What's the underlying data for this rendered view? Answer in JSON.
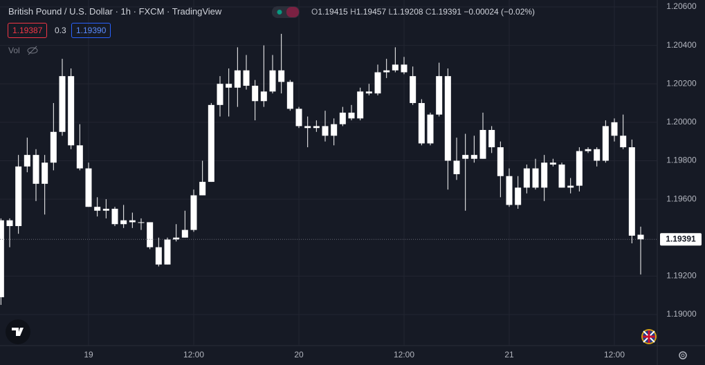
{
  "chart_data": {
    "type": "candlestick",
    "title": "British Pound / U.S. Dollar · 1h · FXCM · TradingView",
    "ohlc_labels": [
      "O",
      "H",
      "L",
      "C"
    ],
    "change": "−0.00024 (−0.02%)",
    "bid": "1.19387",
    "spread": "0.3",
    "ask": "1.19390",
    "volume_label": "Vol",
    "color": "#ffffff",
    "categories": [
      null,
      null,
      null,
      null,
      null,
      null,
      null,
      null,
      null,
      null,
      "19",
      null,
      null,
      null,
      null,
      null,
      null,
      null,
      null,
      null,
      null,
      null,
      "12:00",
      null,
      null,
      null,
      null,
      null,
      null,
      null,
      null,
      null,
      null,
      null,
      "20",
      null,
      null,
      null,
      null,
      null,
      null,
      null,
      null,
      null,
      null,
      null,
      "12:00",
      null,
      null,
      null,
      null,
      null,
      null,
      null,
      null,
      null,
      null,
      null,
      "21",
      null,
      null,
      null,
      null,
      null,
      null,
      null,
      null,
      null,
      null,
      null,
      "12:00",
      null,
      null,
      null
    ],
    "open": [
      1.1909,
      1.1949,
      1.1946,
      1.1977,
      1.1983,
      1.1968,
      1.1979,
      1.1995,
      1.2024,
      1.1988,
      1.1976,
      1.1956,
      1.1954,
      1.1955,
      1.1947,
      1.1949,
      1.1948,
      1.1948,
      1.1935,
      1.1926,
      1.1939,
      1.194,
      1.1944,
      1.1962,
      1.1969,
      1.2009,
      1.202,
      1.2018,
      1.2027,
      1.2019,
      1.2011,
      1.2016,
      1.2027,
      1.2021,
      1.2007,
      1.1998,
      1.1997,
      1.1998,
      1.1993,
      1.1999,
      1.2005,
      1.2002,
      1.2016,
      1.2015,
      1.2026,
      1.2027,
      1.203,
      1.2024,
      1.201,
      1.1989,
      1.2004,
      1.2024,
      1.198,
      1.1981,
      1.1983,
      1.1981,
      1.1996,
      1.1987,
      1.1972,
      1.1957,
      1.1966,
      1.1976,
      1.1966,
      1.1979,
      1.1978,
      1.1966,
      1.1967,
      1.1985,
      1.1986,
      1.198,
      1.2,
      1.1993,
      1.1987,
      1.19415
    ],
    "high": [
      1.195,
      1.195,
      1.1983,
      1.1992,
      1.1986,
      1.1983,
      1.201,
      1.2033,
      1.2028,
      1.1999,
      1.1979,
      1.1961,
      1.196,
      1.1956,
      1.1957,
      1.1953,
      1.195,
      1.1948,
      1.194,
      1.194,
      1.1947,
      1.1954,
      1.1965,
      1.198,
      1.201,
      1.2024,
      1.2028,
      1.2039,
      1.2035,
      1.2022,
      1.204,
      1.2035,
      1.2046,
      1.2022,
      1.2008,
      1.2003,
      1.2001,
      1.2006,
      1.2002,
      1.2008,
      1.2009,
      1.2018,
      1.202,
      1.203,
      1.2033,
      1.2039,
      1.2034,
      1.2029,
      1.2012,
      1.2005,
      1.2031,
      1.2028,
      1.1992,
      1.1994,
      1.1993,
      1.2005,
      1.1998,
      1.199,
      1.1976,
      1.1972,
      1.1978,
      1.1981,
      1.1983,
      1.1981,
      1.1979,
      1.1971,
      1.1987,
      1.1987,
      1.1987,
      1.2001,
      1.2002,
      1.2004,
      1.1991,
      1.19457
    ],
    "low": [
      1.1905,
      1.1935,
      1.1942,
      1.1974,
      1.1959,
      1.1952,
      1.1975,
      1.1993,
      1.1986,
      1.1975,
      1.1956,
      1.1951,
      1.195,
      1.1946,
      1.1945,
      1.1945,
      1.1944,
      1.1934,
      1.1925,
      1.1926,
      1.1938,
      1.194,
      1.1943,
      1.1962,
      1.1969,
      1.2003,
      1.2003,
      1.2008,
      1.2017,
      1.2001,
      1.2008,
      1.2015,
      1.2015,
      1.2006,
      1.1997,
      1.1987,
      1.1995,
      1.199,
      1.1988,
      1.1998,
      1.2001,
      1.2001,
      1.2014,
      1.2014,
      1.2023,
      1.2026,
      1.2025,
      1.2009,
      1.1988,
      1.1988,
      1.2003,
      1.1965,
      1.197,
      1.1954,
      1.1979,
      1.1981,
      1.1984,
      1.1961,
      1.1956,
      1.1955,
      1.1963,
      1.1965,
      1.1959,
      1.1977,
      1.1966,
      1.1963,
      1.1964,
      1.1984,
      1.1977,
      1.1979,
      1.199,
      1.1986,
      1.1937,
      1.19208
    ],
    "close": [
      1.1949,
      1.1946,
      1.1977,
      1.1983,
      1.1968,
      1.1979,
      1.1995,
      1.2024,
      1.1988,
      1.1976,
      1.1956,
      1.1954,
      1.1955,
      1.1947,
      1.1949,
      1.1948,
      1.1948,
      1.1935,
      1.1926,
      1.1939,
      1.194,
      1.1944,
      1.1962,
      1.1969,
      1.2009,
      1.202,
      1.2018,
      1.2027,
      1.2019,
      1.2011,
      1.2016,
      1.2027,
      1.2021,
      1.2007,
      1.1998,
      1.1997,
      1.1998,
      1.1993,
      1.1999,
      1.2005,
      1.2002,
      1.2016,
      1.2015,
      1.2026,
      1.2027,
      1.203,
      1.2026,
      1.201,
      1.1989,
      1.2004,
      1.2024,
      1.198,
      1.1973,
      1.1983,
      1.1981,
      1.1996,
      1.1987,
      1.1972,
      1.1957,
      1.1966,
      1.1976,
      1.1966,
      1.1979,
      1.1978,
      1.1966,
      1.1967,
      1.1985,
      1.1986,
      1.198,
      1.1998,
      1.1993,
      1.1987,
      1.1941,
      1.19391
    ],
    "ylim": [
      1.18838,
      1.20636
    ],
    "yticks": [
      {
        "value": 1.206,
        "label": "1.20600"
      },
      {
        "value": 1.204,
        "label": "1.20400"
      },
      {
        "value": 1.202,
        "label": "1.20200"
      },
      {
        "value": 1.2,
        "label": "1.20000"
      },
      {
        "value": 1.198,
        "label": "1.19800"
      },
      {
        "value": 1.196,
        "label": "1.19600"
      },
      {
        "value": 1.192,
        "label": "1.19200"
      },
      {
        "value": 1.19,
        "label": "1.19000"
      }
    ],
    "grid": true
  }
}
